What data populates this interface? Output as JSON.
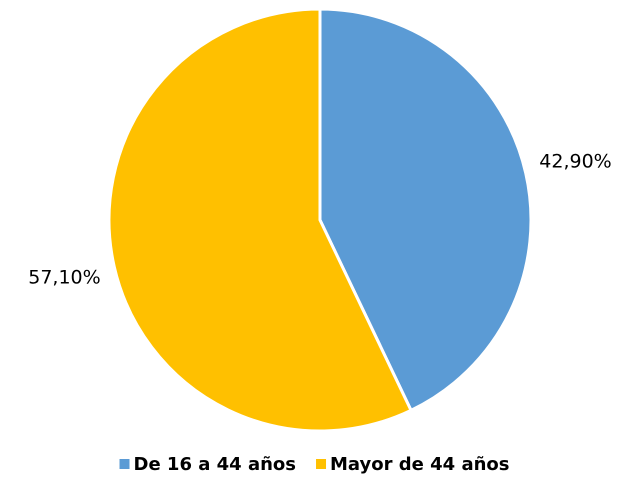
{
  "chart_data": {
    "type": "pie",
    "categories": [
      "De 16 a 44 años",
      "Mayor de 44 años"
    ],
    "values": [
      42.9,
      57.1
    ],
    "value_labels": [
      "42,90%",
      "57,10%"
    ],
    "colors": [
      "#5b9bd5",
      "#ffc000"
    ],
    "legend": "bottom"
  }
}
